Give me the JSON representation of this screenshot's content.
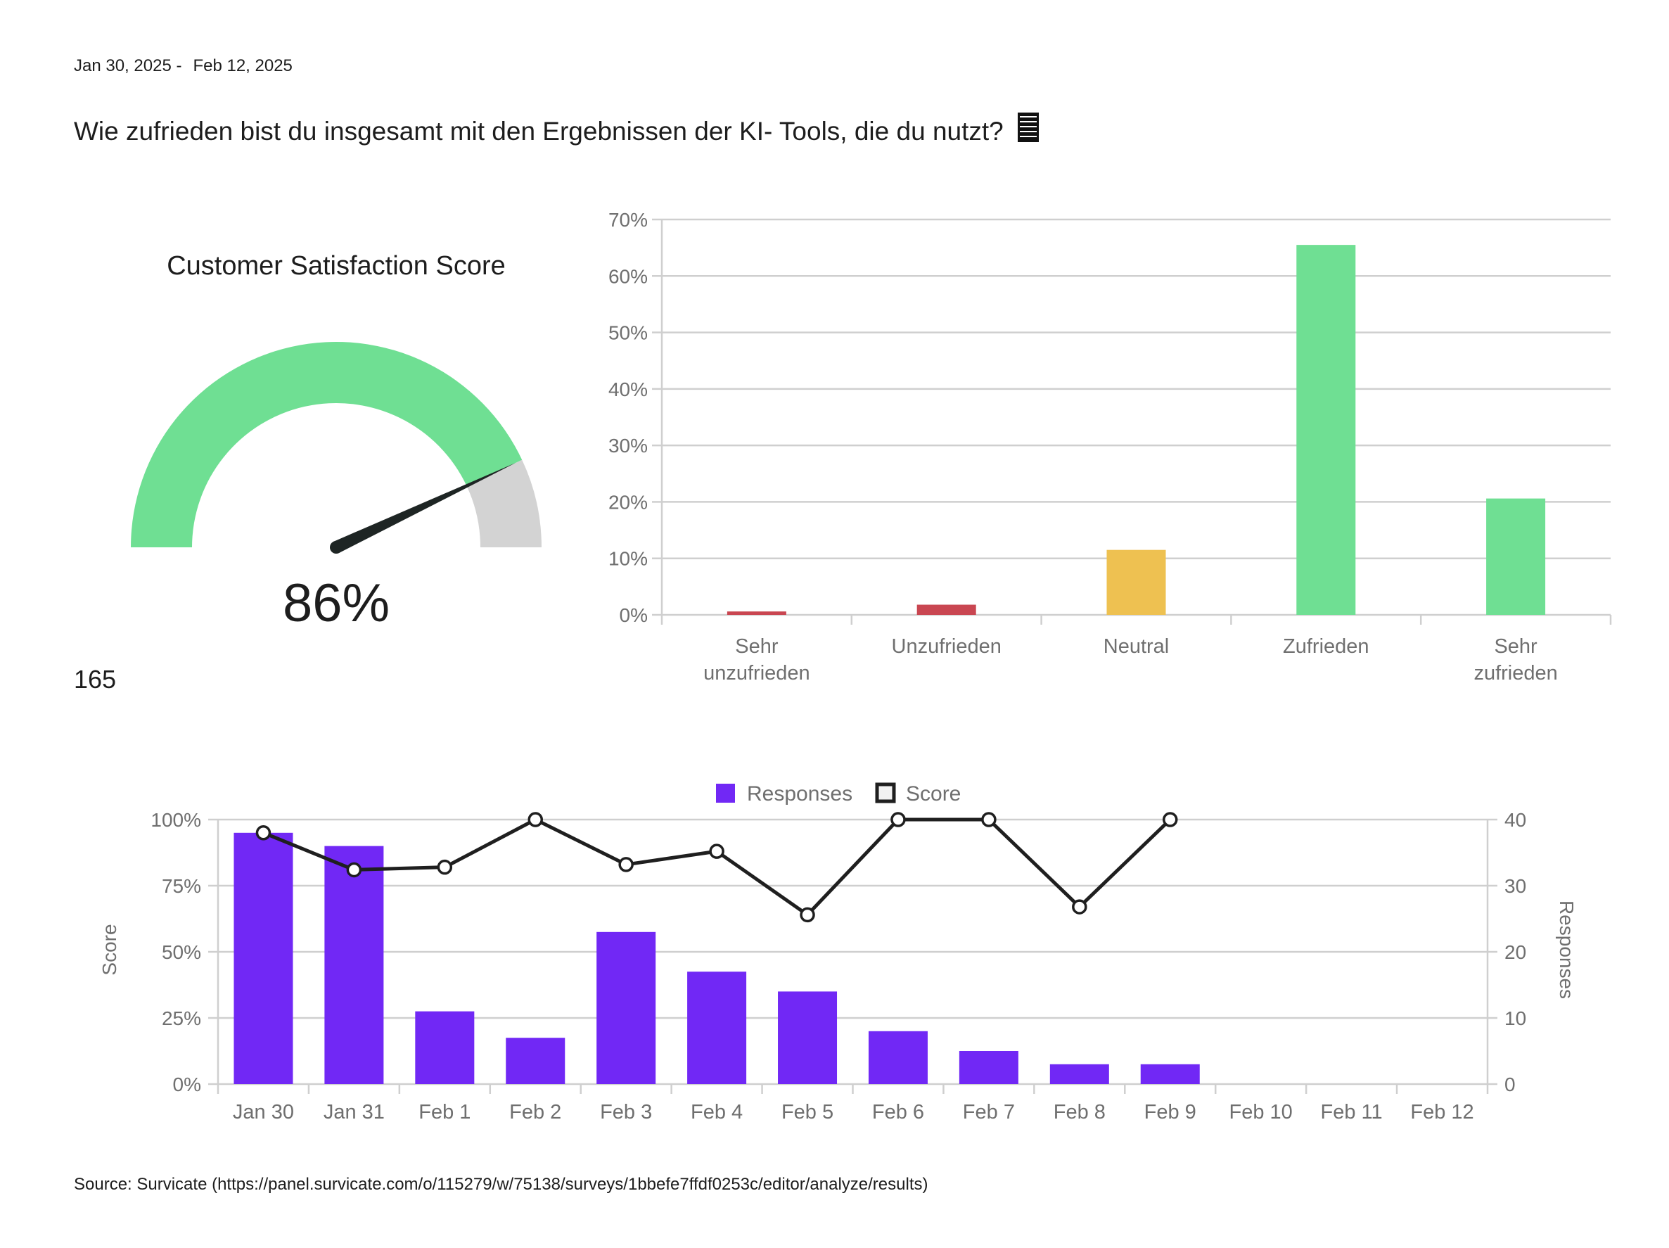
{
  "header": {
    "date_start": "Jan 30, 2025 -",
    "date_end": "Feb 12, 2025",
    "question": "Wie zufrieden bist du insgesamt mit den Ergebnissen der KI-  Tools, die du nutzt?",
    "question_icon": "list-icon"
  },
  "response_count": "165",
  "source": "Source: Survicate (https://panel.survicate.com/o/115279/w/75138/surveys/1bbefe7ffdf0253c/editor/analyze/results)",
  "colors": {
    "positive": "#6fdf93",
    "negative": "#c94651",
    "neutral": "#eec151",
    "gauge_rest": "#d3d3d3",
    "needle": "#1e2524",
    "responses": "#7128f5",
    "score_line": "#1f1f1f",
    "grid": "#cfcfcf",
    "axis_text": "#6f6f6f"
  },
  "chart_data": [
    {
      "type": "gauge",
      "title": "Customer Satisfaction Score",
      "value": 86,
      "value_label": "86%",
      "max": 100
    },
    {
      "type": "bar",
      "categories": [
        [
          "Sehr",
          "unzufrieden"
        ],
        [
          "Unzufrieden"
        ],
        [
          "Neutral"
        ],
        [
          "Zufrieden"
        ],
        [
          "Sehr",
          "zufrieden"
        ]
      ],
      "values": [
        0.6,
        1.8,
        11.5,
        65.5,
        20.6
      ],
      "bar_colors": [
        "negative",
        "negative",
        "neutral",
        "positive",
        "positive"
      ],
      "ylim": [
        0,
        70
      ],
      "yticks": [
        0,
        10,
        20,
        30,
        40,
        50,
        60,
        70
      ],
      "ytick_suffix": "%",
      "grid": true
    },
    {
      "type": "bar+line",
      "categories": [
        "Jan 30",
        "Jan 31",
        "Feb 1",
        "Feb 2",
        "Feb 3",
        "Feb 4",
        "Feb 5",
        "Feb 6",
        "Feb 7",
        "Feb 8",
        "Feb 9",
        "Feb 10",
        "Feb 11",
        "Feb 12"
      ],
      "legend": [
        {
          "name": "Responses",
          "marker": "filled-square"
        },
        {
          "name": "Score",
          "marker": "outlined-square"
        }
      ],
      "legend_position": "top-center",
      "responses": {
        "name": "Responses",
        "values": [
          38,
          36,
          11,
          7,
          23,
          17,
          14,
          8,
          5,
          3,
          3,
          0,
          0,
          0
        ]
      },
      "score": {
        "name": "Score",
        "values": [
          95,
          81,
          82,
          100,
          83,
          88,
          64,
          100,
          100,
          67,
          100,
          null,
          null,
          null
        ]
      },
      "y_left": {
        "label": "Score",
        "ticks": [
          "0%",
          "25%",
          "50%",
          "75%",
          "100%"
        ],
        "range": [
          0,
          100
        ]
      },
      "y_right": {
        "label": "Responses",
        "ticks": [
          "0",
          "10",
          "20",
          "30",
          "40"
        ],
        "range": [
          0,
          40
        ]
      },
      "grid": true
    }
  ]
}
